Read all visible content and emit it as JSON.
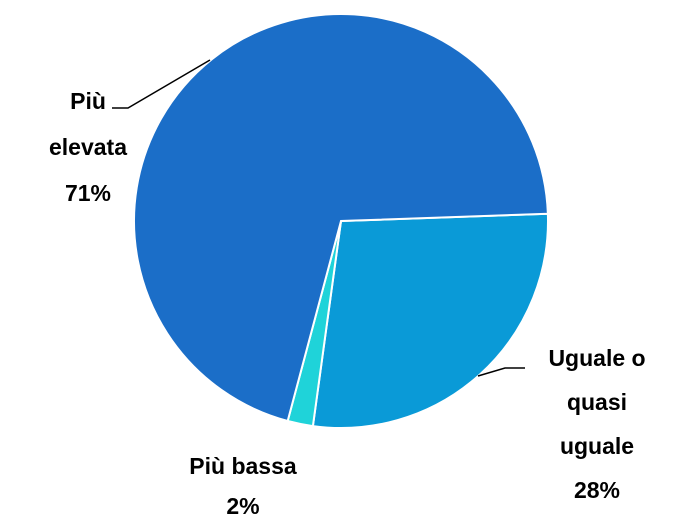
{
  "chart_data": {
    "type": "pie",
    "categories": [
      "Uguale o quasi uguale",
      "Più bassa",
      "Più elevata"
    ],
    "values": [
      28,
      2,
      71
    ],
    "value_labels": [
      "28%",
      "2%",
      "71%"
    ],
    "colors": [
      "#0a9ad7",
      "#1fd3d9",
      "#1b6ec8"
    ]
  }
}
